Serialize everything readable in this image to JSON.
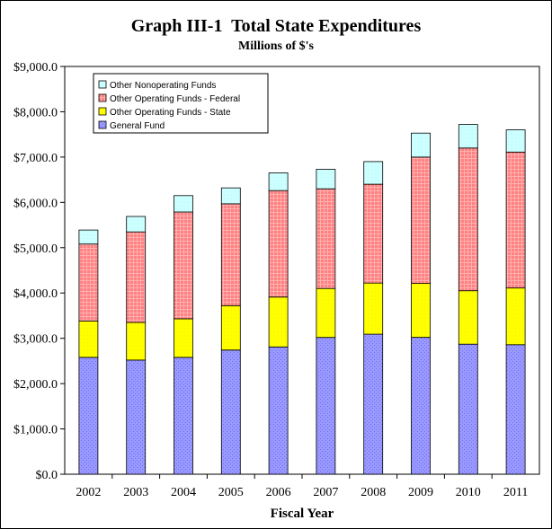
{
  "chart_data": {
    "type": "bar",
    "stacked": true,
    "title": "Graph III-1  Total State Expenditures",
    "subtitle": "Millions of $'s",
    "xlabel": "Fiscal Year",
    "ylabel": "",
    "ylim": [
      0,
      9000
    ],
    "yticks": [
      "$0.0",
      "$1,000.0",
      "$2,000.0",
      "$3,000.0",
      "$4,000.0",
      "$5,000.0",
      "$6,000.0",
      "$7,000.0",
      "$8,000.0",
      "$9,000.0"
    ],
    "ytick_values": [
      0,
      1000,
      2000,
      3000,
      4000,
      5000,
      6000,
      7000,
      8000,
      9000
    ],
    "categories": [
      "2002",
      "2003",
      "2004",
      "2005",
      "2006",
      "2007",
      "2008",
      "2009",
      "2010",
      "2011"
    ],
    "legend_position": "top-left",
    "grid": false,
    "series": [
      {
        "name": "General Fund",
        "color": "#9999ff",
        "values": [
          2580,
          2520,
          2580,
          2740,
          2810,
          3020,
          3090,
          3020,
          2870,
          2860
        ]
      },
      {
        "name": "Other Operating Funds - State",
        "color": "#ffff00",
        "values": [
          800,
          830,
          850,
          980,
          1100,
          1080,
          1130,
          1190,
          1180,
          1250
        ]
      },
      {
        "name": "Other Operating Funds - Federal",
        "color": "#ff7f7f",
        "values": [
          1700,
          2000,
          2360,
          2250,
          2350,
          2200,
          2180,
          2790,
          3150,
          3000
        ]
      },
      {
        "name": "Other Nonoperating Funds",
        "color": "#ccffff",
        "values": [
          310,
          340,
          360,
          350,
          390,
          430,
          500,
          530,
          520,
          490
        ]
      }
    ]
  }
}
